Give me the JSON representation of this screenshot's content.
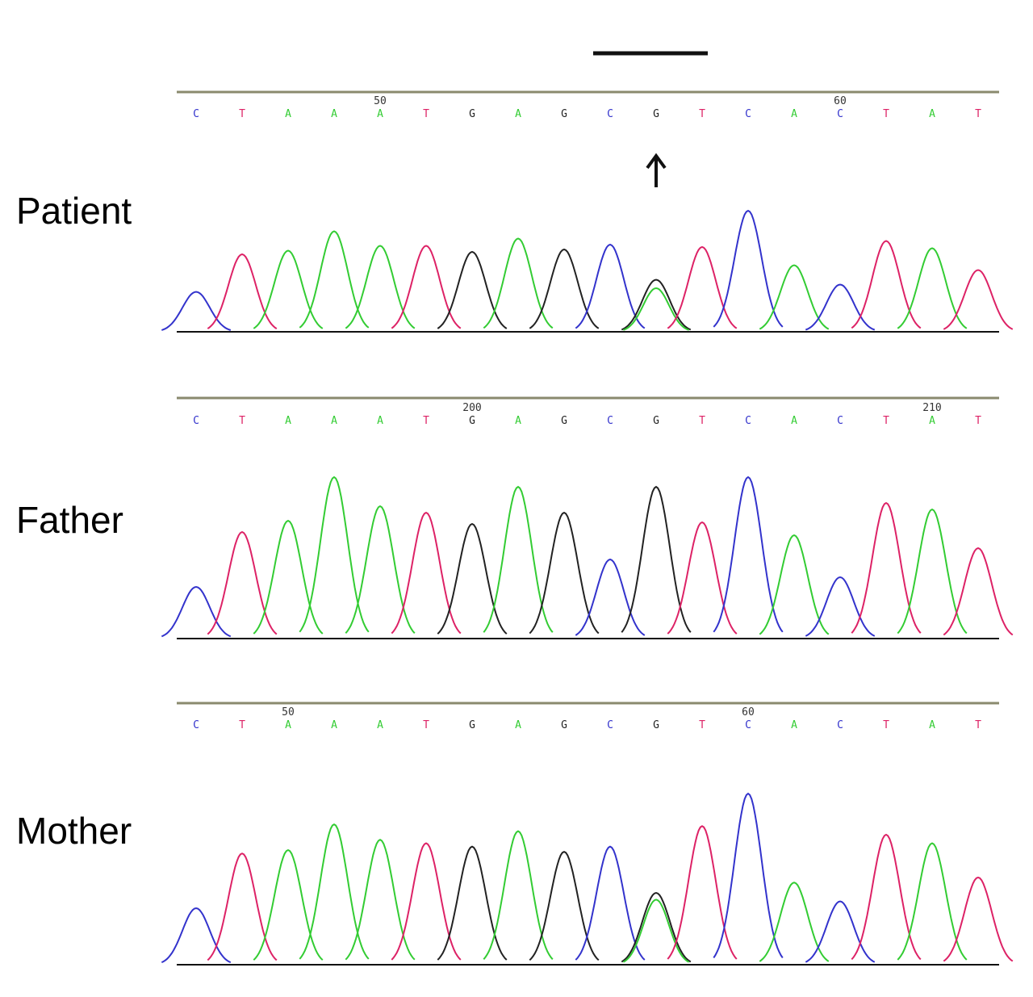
{
  "figure": {
    "colors": {
      "A": "#33cc33",
      "C": "#3333cc",
      "G": "#222222",
      "T": "#dd2266",
      "rule": "#8a8a6e",
      "baseline": "#111111"
    },
    "marker_bar": true,
    "arrow_icon": "up-arrow-icon"
  },
  "chart_data": [
    {
      "type": "line",
      "row_label": "Patient",
      "sequence": [
        "C",
        "T",
        "A",
        "A",
        "A",
        "T",
        "G",
        "A",
        "G",
        "C",
        "G",
        "T",
        "C",
        "A",
        "C",
        "T",
        "A",
        "T"
      ],
      "position_labels": [
        {
          "text": "50",
          "base_index": 4
        },
        {
          "text": "60",
          "base_index": 14
        }
      ],
      "arrow_at_base_index": 10,
      "peaks": [
        {
          "base": "C",
          "height": 0.33
        },
        {
          "base": "T",
          "height": 0.64
        },
        {
          "base": "A",
          "height": 0.67
        },
        {
          "base": "A",
          "height": 0.83
        },
        {
          "base": "A",
          "height": 0.71
        },
        {
          "base": "T",
          "height": 0.71
        },
        {
          "base": "G",
          "height": 0.66
        },
        {
          "base": "A",
          "height": 0.77
        },
        {
          "base": "G",
          "height": 0.68
        },
        {
          "base": "C",
          "height": 0.72
        },
        {
          "base": "G",
          "height": 0.43,
          "secondary": {
            "base": "A",
            "height": 0.36
          }
        },
        {
          "base": "T",
          "height": 0.7
        },
        {
          "base": "C",
          "height": 1.0
        },
        {
          "base": "A",
          "height": 0.55
        },
        {
          "base": "C",
          "height": 0.39
        },
        {
          "base": "T",
          "height": 0.75
        },
        {
          "base": "A",
          "height": 0.69
        },
        {
          "base": "T",
          "height": 0.51
        }
      ]
    },
    {
      "type": "line",
      "row_label": "Father",
      "sequence": [
        "C",
        "T",
        "A",
        "A",
        "A",
        "T",
        "G",
        "A",
        "G",
        "C",
        "G",
        "T",
        "C",
        "A",
        "C",
        "T",
        "A",
        "T"
      ],
      "position_labels": [
        {
          "text": "200",
          "base_index": 6
        },
        {
          "text": "210",
          "base_index": 16
        }
      ],
      "peaks": [
        {
          "base": "C",
          "height": 0.32
        },
        {
          "base": "T",
          "height": 0.66
        },
        {
          "base": "A",
          "height": 0.73
        },
        {
          "base": "A",
          "height": 1.0
        },
        {
          "base": "A",
          "height": 0.82
        },
        {
          "base": "T",
          "height": 0.78
        },
        {
          "base": "G",
          "height": 0.71
        },
        {
          "base": "A",
          "height": 0.94
        },
        {
          "base": "G",
          "height": 0.78
        },
        {
          "base": "C",
          "height": 0.49
        },
        {
          "base": "G",
          "height": 0.94
        },
        {
          "base": "T",
          "height": 0.72
        },
        {
          "base": "C",
          "height": 1.0
        },
        {
          "base": "A",
          "height": 0.64
        },
        {
          "base": "C",
          "height": 0.38
        },
        {
          "base": "T",
          "height": 0.84
        },
        {
          "base": "A",
          "height": 0.8
        },
        {
          "base": "T",
          "height": 0.56
        }
      ]
    },
    {
      "type": "line",
      "row_label": "Mother",
      "sequence": [
        "C",
        "T",
        "A",
        "A",
        "A",
        "T",
        "G",
        "A",
        "G",
        "C",
        "G",
        "T",
        "C",
        "A",
        "C",
        "T",
        "A",
        "T"
      ],
      "position_labels": [
        {
          "text": "50",
          "base_index": 2
        },
        {
          "text": "60",
          "base_index": 12
        }
      ],
      "peaks": [
        {
          "base": "C",
          "height": 0.33
        },
        {
          "base": "T",
          "height": 0.65
        },
        {
          "base": "A",
          "height": 0.67
        },
        {
          "base": "A",
          "height": 0.82
        },
        {
          "base": "A",
          "height": 0.73
        },
        {
          "base": "T",
          "height": 0.71
        },
        {
          "base": "G",
          "height": 0.69
        },
        {
          "base": "A",
          "height": 0.78
        },
        {
          "base": "G",
          "height": 0.66
        },
        {
          "base": "C",
          "height": 0.69
        },
        {
          "base": "G",
          "height": 0.42,
          "secondary": {
            "base": "A",
            "height": 0.38
          }
        },
        {
          "base": "T",
          "height": 0.81
        },
        {
          "base": "C",
          "height": 1.0
        },
        {
          "base": "A",
          "height": 0.48
        },
        {
          "base": "C",
          "height": 0.37
        },
        {
          "base": "T",
          "height": 0.76
        },
        {
          "base": "A",
          "height": 0.71
        },
        {
          "base": "T",
          "height": 0.51
        }
      ]
    }
  ]
}
